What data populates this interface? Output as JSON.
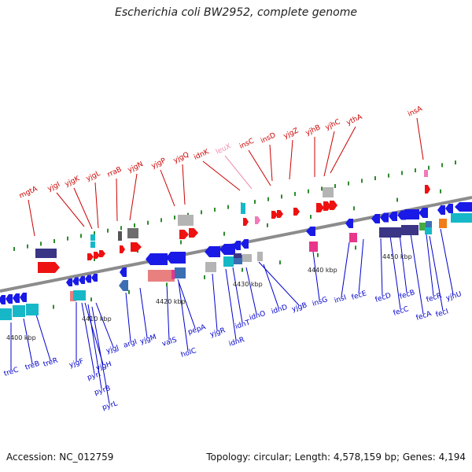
{
  "title": "Escherichia coli BW2952, complete genome",
  "footer": {
    "accession": "Accession: NC_012759",
    "summary": "Topology: circular; Length: 4,578,159 bp; Genes: 4,194"
  },
  "colors": {
    "upper_labels": "#cc0000",
    "upper_label_pink": "#f08cb4",
    "lower_labels": "#0000cc",
    "backbone": "#8c8c8c",
    "ticks": "#2e8b2e"
  },
  "ticks": [
    "4400 kbp",
    "4410 kbp",
    "4420 kbp",
    "4430 kbp",
    "4440 kbp",
    "4450 kbp"
  ],
  "upper_genes": [
    "mgtA",
    "yjgI",
    "yjgK",
    "yjgL",
    "rraB",
    "yjgN",
    "yjgP",
    "yjgQ",
    "idnK",
    "leuX",
    "insC",
    "insD",
    "yjgZ",
    "yjhB",
    "yjhC",
    "ythA",
    "insA"
  ],
  "lower_genes": [
    "treC",
    "treB",
    "treR",
    "yjgF",
    "pyrI",
    "yjgH",
    "pyrB",
    "pyrL",
    "yjgJ",
    "argI",
    "yjgM",
    "valS",
    "holC",
    "pepA",
    "yjgR",
    "idnR",
    "idnT",
    "idnO",
    "idnD",
    "yjgB",
    "insG",
    "insI",
    "fecE",
    "fecD",
    "fecC",
    "fecB",
    "fecA",
    "fecR",
    "fecI",
    "yjhU"
  ]
}
